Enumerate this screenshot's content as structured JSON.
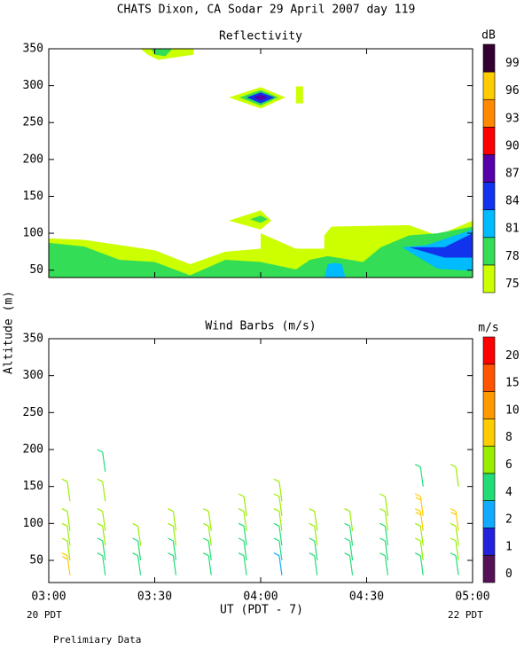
{
  "title": "CHATS Dixon, CA  Sodar  29 April 2007  day 119",
  "y_label": "Altitude (m)",
  "x_label": "UT  (PDT - 7)",
  "x_start_note": "20 PDT",
  "x_end_note": "22 PDT",
  "footnote": "Prelimiary Data",
  "chart_data": [
    {
      "type": "contour",
      "title": "Reflectivity",
      "colorbar_label": "dB",
      "levels": [
        75,
        78,
        81,
        84,
        87,
        90,
        93,
        96,
        99
      ],
      "colors": [
        "#ccff00",
        "#33dd55",
        "#00bbff",
        "#1133ee",
        "#5500aa",
        "#ff0000",
        "#ff8800",
        "#ffcc00",
        "#330033"
      ],
      "xlim": [
        "03:00",
        "05:00"
      ],
      "xticks": [
        "03:00",
        "03:30",
        "04:00",
        "04:30",
        "05:00"
      ],
      "ylim": [
        40,
        350
      ],
      "yticks": [
        50,
        100,
        150,
        200,
        250,
        300,
        350
      ],
      "regions": [
        {
          "level": 75,
          "points": [
            [
              "03:00",
              93
            ],
            [
              "03:10",
              91
            ],
            [
              "03:30",
              77
            ],
            [
              "03:40",
              58
            ],
            [
              "03:50",
              75
            ],
            [
              "04:00",
              79
            ],
            [
              "04:00",
              100
            ],
            [
              "04:10",
              79
            ],
            [
              "04:18",
              79
            ],
            [
              "04:18",
              97
            ],
            [
              "04:20",
              109
            ],
            [
              "04:42",
              111
            ],
            [
              "04:50",
              97
            ],
            [
              "05:00",
              117
            ],
            [
              "05:00",
              40
            ],
            [
              "03:00",
              40
            ]
          ]
        },
        {
          "level": 78,
          "points": [
            [
              "03:00",
              87
            ],
            [
              "03:10",
              82
            ],
            [
              "03:20",
              64
            ],
            [
              "03:30",
              61
            ],
            [
              "03:40",
              43
            ],
            [
              "03:50",
              64
            ],
            [
              "04:00",
              61
            ],
            [
              "04:10",
              51
            ],
            [
              "04:14",
              64
            ],
            [
              "04:19",
              69
            ],
            [
              "04:29",
              61
            ],
            [
              "04:34",
              81
            ],
            [
              "04:42",
              97
            ],
            [
              "04:50",
              100
            ],
            [
              "05:00",
              109
            ],
            [
              "05:00",
              40
            ],
            [
              "03:00",
              40
            ]
          ]
        },
        {
          "level": 81,
          "points": [
            [
              "04:40",
              81
            ],
            [
              "04:47",
              84
            ],
            [
              "05:00",
              105
            ],
            [
              "05:00",
              49
            ],
            [
              "04:50",
              52
            ]
          ]
        },
        {
          "level": 81,
          "points": [
            [
              "04:18",
              40
            ],
            [
              "04:19",
              58
            ],
            [
              "04:21",
              60
            ],
            [
              "04:23",
              58
            ],
            [
              "04:24",
              40
            ]
          ]
        },
        {
          "level": 84,
          "points": [
            [
              "04:42",
              81
            ],
            [
              "04:52",
              81
            ],
            [
              "05:00",
              100
            ],
            [
              "05:00",
              67
            ],
            [
              "04:52",
              67
            ]
          ]
        },
        {
          "level": 75,
          "points": [
            [
              "03:51",
              117
            ],
            [
              "04:00",
              131
            ],
            [
              "04:03",
              117
            ],
            [
              "04:00",
              105
            ]
          ]
        },
        {
          "level": 78,
          "points": [
            [
              "03:57",
              119
            ],
            [
              "04:00",
              124
            ],
            [
              "04:02",
              119
            ],
            [
              "04:00",
              114
            ]
          ]
        },
        {
          "level": 75,
          "points": [
            [
              "03:51",
              284
            ],
            [
              "04:00",
              298
            ],
            [
              "04:07",
              284
            ],
            [
              "04:00",
              269
            ]
          ]
        },
        {
          "level": 78,
          "points": [
            [
              "03:54",
              284
            ],
            [
              "04:00",
              294
            ],
            [
              "04:05",
              284
            ],
            [
              "04:00",
              273
            ]
          ]
        },
        {
          "level": 84,
          "points": [
            [
              "03:56",
              284
            ],
            [
              "04:00",
              291
            ],
            [
              "04:04",
              284
            ],
            [
              "04:00",
              276
            ]
          ]
        },
        {
          "level": 87,
          "points": [
            [
              "03:58",
              284
            ],
            [
              "04:00",
              288
            ],
            [
              "04:02",
              284
            ],
            [
              "04:00",
              280
            ]
          ]
        },
        {
          "level": 75,
          "points": [
            [
              "03:26",
              350
            ],
            [
              "03:41",
              350
            ],
            [
              "03:41",
              342
            ],
            [
              "03:31",
              335
            ],
            [
              "03:28",
              342
            ]
          ]
        },
        {
          "level": 78,
          "points": [
            [
              "03:29",
              350
            ],
            [
              "03:35",
              350
            ],
            [
              "03:33",
              340
            ],
            [
              "03:30",
              342
            ]
          ]
        },
        {
          "level": 75,
          "points": [
            [
              "04:10",
              276
            ],
            [
              "04:12",
              276
            ],
            [
              "04:12",
              299
            ],
            [
              "04:10",
              299
            ]
          ]
        }
      ]
    },
    {
      "type": "barbs",
      "title": "Wind Barbs (m/s)",
      "colorbar_label": "m/s",
      "levels": [
        0,
        1,
        2,
        4,
        6,
        8,
        10,
        15,
        20
      ],
      "colors": [
        "#551155",
        "#2222dd",
        "#11aaff",
        "#22dd77",
        "#99ee00",
        "#ffcc00",
        "#ff9900",
        "#ff5500",
        "#ff0000"
      ],
      "xlim": [
        "03:00",
        "05:00"
      ],
      "xticks": [
        "03:00",
        "03:30",
        "04:00",
        "04:30",
        "05:00"
      ],
      "ylim": [
        20,
        350
      ],
      "yticks": [
        50,
        100,
        150,
        200,
        250,
        300,
        350
      ],
      "barbs": [
        {
          "x": "03:06",
          "alt": [
            30,
            50,
            70,
            90,
            130
          ],
          "speed": [
            8,
            7,
            6,
            7,
            6
          ]
        },
        {
          "x": "03:16",
          "alt": [
            30,
            50,
            70,
            90,
            130,
            170
          ],
          "speed": [
            5,
            5,
            6,
            6,
            6,
            5
          ]
        },
        {
          "x": "03:26",
          "alt": [
            30,
            50,
            70
          ],
          "speed": [
            4,
            4,
            6
          ]
        },
        {
          "x": "03:36",
          "alt": [
            30,
            50,
            70,
            90
          ],
          "speed": [
            4,
            5,
            6,
            6
          ]
        },
        {
          "x": "03:46",
          "alt": [
            30,
            50,
            70,
            90
          ],
          "speed": [
            5,
            5,
            6,
            7
          ]
        },
        {
          "x": "03:56",
          "alt": [
            30,
            50,
            70,
            90,
            110
          ],
          "speed": [
            4,
            4,
            5,
            6,
            6
          ]
        },
        {
          "x": "04:06",
          "alt": [
            30,
            50,
            70,
            90,
            110,
            130
          ],
          "speed": [
            2,
            4,
            5,
            6,
            7,
            7
          ]
        },
        {
          "x": "04:16",
          "alt": [
            30,
            50,
            70,
            90
          ],
          "speed": [
            5,
            5,
            6,
            7
          ]
        },
        {
          "x": "04:26",
          "alt": [
            30,
            50,
            70,
            90
          ],
          "speed": [
            4,
            5,
            5,
            6
          ]
        },
        {
          "x": "04:36",
          "alt": [
            30,
            50,
            70,
            90,
            110
          ],
          "speed": [
            4,
            4,
            5,
            6,
            6
          ]
        },
        {
          "x": "04:46",
          "alt": [
            30,
            50,
            70,
            90,
            110,
            150
          ],
          "speed": [
            4,
            6,
            7,
            8,
            9,
            5
          ]
        },
        {
          "x": "04:56",
          "alt": [
            30,
            50,
            70,
            90,
            150
          ],
          "speed": [
            5,
            6,
            7,
            9,
            6
          ]
        }
      ]
    }
  ]
}
